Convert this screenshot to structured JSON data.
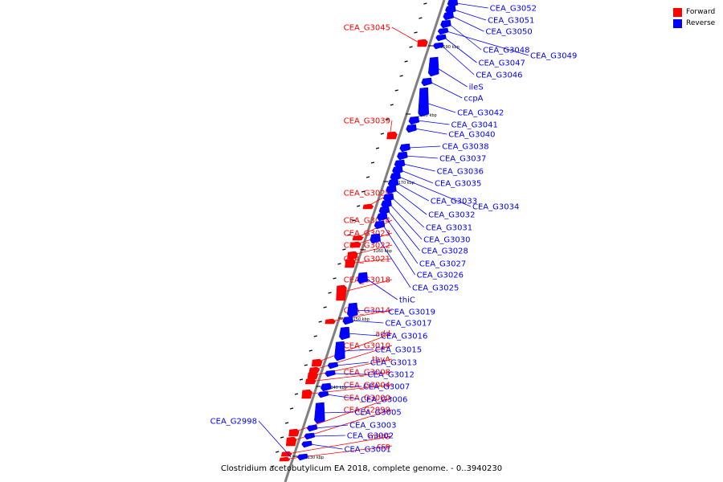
{
  "legend": {
    "forward_label": "Forward",
    "reverse_label": "Reverse",
    "forward_color": "#ff0000",
    "reverse_color": "#0000ff"
  },
  "caption": "Clostridium acetobutylicum EA 2018, complete genome. - 0..3940230",
  "genome_axis": {
    "color": "#808080",
    "ticks": [
      "3190 kbp",
      "3180 kbp",
      "3170 kbp",
      "3160 kbp",
      "3150 kbp",
      "3140 kbp",
      "3130 kbp"
    ]
  },
  "forward_genes": [
    "CEA_G3045",
    "CEA_G3039",
    "CEA_G3029",
    "CEA_G3024",
    "CEA_G3023",
    "CEA_G3022",
    "CEA_G3021",
    "CEA_G3018",
    "CEA_G3014",
    "add",
    "CEA_G3010",
    "thyA",
    "CEA_G3008",
    "CEA_G3004",
    "CEA_G3000",
    "CEA_G2999",
    "metG",
    "csp"
  ],
  "reverse_genes": [
    "CEA_G3052",
    "CEA_G3051",
    "CEA_G3050",
    "CEA_G3048",
    "CEA_G3049",
    "CEA_G3047",
    "CEA_G3046",
    "ileS",
    "ccpA",
    "CEA_G3042",
    "CEA_G3041",
    "CEA_G3040",
    "CEA_G3038",
    "CEA_G3037",
    "CEA_G3036",
    "CEA_G3035",
    "CEA_G3034",
    "CEA_G3033",
    "CEA_G3032",
    "CEA_G3031",
    "CEA_G3030",
    "CEA_G3028",
    "CEA_G3027",
    "CEA_G3026",
    "CEA_G3025",
    "thiC",
    "CEA_G3019",
    "CEA_G3017",
    "CEA_G3016",
    "CEA_G3015",
    "CEA_G3013",
    "CEA_G3012",
    "CEA_G3007",
    "CEA_G3006",
    "CEA_G3005",
    "CEA_G3003",
    "CEA_G3002",
    "CEA_G3001",
    "CEA_G2998"
  ]
}
